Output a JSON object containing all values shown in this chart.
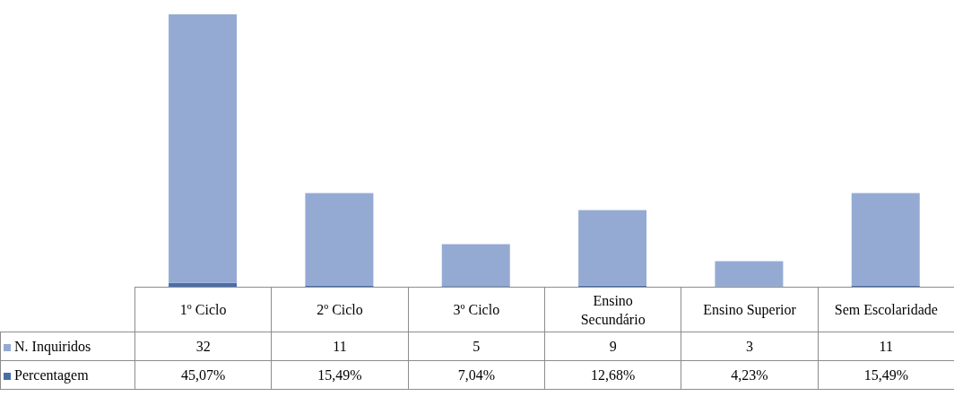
{
  "chart_data": {
    "type": "bar",
    "stacked": true,
    "categories": [
      "1º Ciclo",
      "2º Ciclo",
      "3º Ciclo",
      "Ensino Secundário",
      "Ensino Superior",
      "Sem Escolaridade"
    ],
    "series": [
      {
        "name": "Percentagem",
        "color": "#4a6ea8",
        "values": [
          0.4507,
          0.1549,
          0.0704,
          0.1268,
          0.0423,
          0.1549
        ],
        "value_labels": [
          "45,07%",
          "15,49%",
          "7,04%",
          "12,68%",
          "4,23%",
          "15,49%"
        ]
      },
      {
        "name": "N. Inquiridos",
        "color": "#95aad3",
        "values": [
          32,
          11,
          5,
          9,
          3,
          11
        ]
      }
    ],
    "data_labels": true,
    "legend": "left"
  }
}
